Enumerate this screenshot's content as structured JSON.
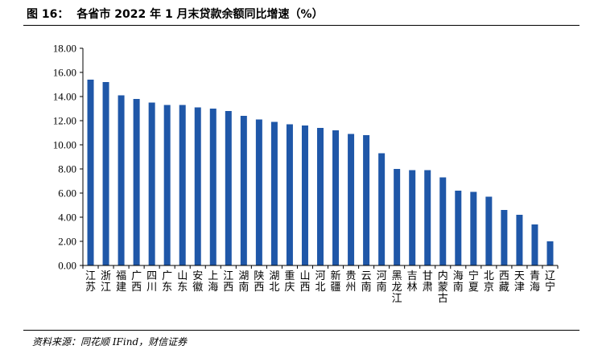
{
  "title": {
    "figure_label": "图 16：",
    "text": "各省市 2022 年 1 月末贷款余额同比增速（%）"
  },
  "source": "资料来源：同花顺 IFind，财信证券",
  "colors": {
    "bar": "#1f57a8",
    "axis": "#000000"
  },
  "chart_data": {
    "type": "bar",
    "categories": [
      "江苏",
      "浙江",
      "福建",
      "广西",
      "四川",
      "广东",
      "山东",
      "安徽",
      "上海",
      "江西",
      "湖南",
      "陕西",
      "湖北",
      "重庆",
      "山西",
      "河北",
      "新疆",
      "贵州",
      "云南",
      "河南",
      "黑龙江",
      "吉林",
      "甘肃",
      "内蒙古",
      "海南",
      "宁夏",
      "北京",
      "西藏",
      "天津",
      "青海",
      "辽宁"
    ],
    "values": [
      15.4,
      15.2,
      14.1,
      13.8,
      13.5,
      13.3,
      13.3,
      13.1,
      13.0,
      12.8,
      12.4,
      12.1,
      11.9,
      11.7,
      11.6,
      11.4,
      11.2,
      10.9,
      10.8,
      9.3,
      8.0,
      7.9,
      7.9,
      7.3,
      6.2,
      6.1,
      5.7,
      4.6,
      4.2,
      3.4,
      2.0
    ],
    "yticks": [
      "0.00",
      "2.00",
      "4.00",
      "6.00",
      "8.00",
      "10.00",
      "12.00",
      "14.00",
      "16.00",
      "18.00"
    ],
    "ylim": [
      0,
      18
    ],
    "xlabel": "",
    "ylabel": "",
    "grid": false,
    "legend": "none"
  }
}
